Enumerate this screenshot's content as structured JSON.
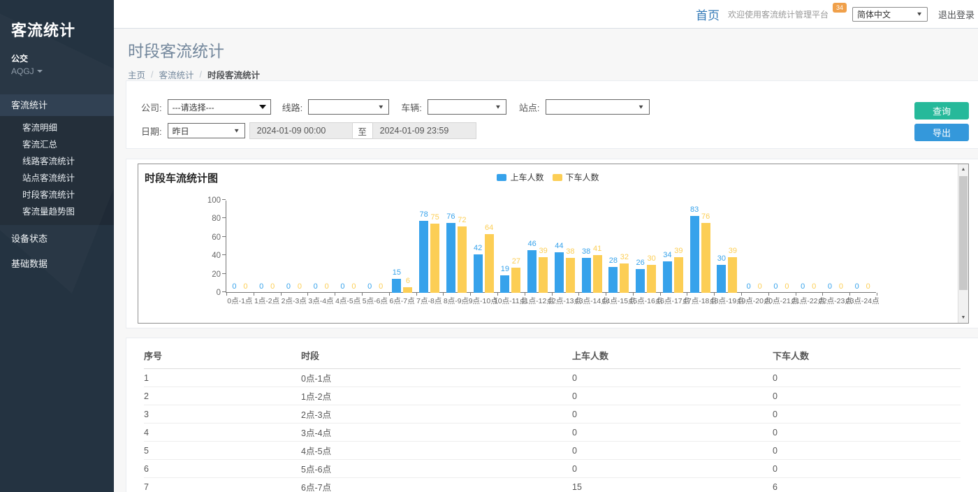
{
  "sidebar": {
    "brand": "客流统计",
    "org": "公交",
    "org_code": "AQGJ",
    "menu": {
      "section_label": "客流统计",
      "items": [
        "客流明细",
        "客流汇总",
        "线路客流统计",
        "站点客流统计",
        "时段客流统计",
        "客流量趋势图"
      ],
      "top_items": [
        "设备状态",
        "基础数据"
      ]
    }
  },
  "topbar": {
    "home": "首页",
    "welcome": "欢迎使用客流统计管理平台",
    "badge": "34",
    "language": "简体中文",
    "logout": "退出登录"
  },
  "page": {
    "title": "时段客流统计",
    "breadcrumb": [
      "主页",
      "客流统计",
      "时段客流统计"
    ]
  },
  "filters": {
    "company_label": "公司:",
    "company_value": "---请选择---",
    "line_label": "线路:",
    "vehicle_label": "车辆:",
    "station_label": "站点:",
    "date_label": "日期:",
    "date_preset": "昨日",
    "date_from": "2024-01-09 00:00",
    "date_sep": "至",
    "date_to": "2024-01-09 23:59",
    "query_button": "查询",
    "export_button": "导出"
  },
  "chart_data": {
    "type": "bar",
    "title": "时段车流统计图",
    "categories": [
      "0点-1点",
      "1点-2点",
      "2点-3点",
      "3点-4点",
      "4点-5点",
      "5点-6点",
      "6点-7点",
      "7点-8点",
      "8点-9点",
      "9点-10点",
      "10点-11点",
      "11点-12点",
      "12点-13点",
      "13点-14点",
      "14点-15点",
      "15点-16点",
      "16点-17点",
      "17点-18点",
      "18点-19点",
      "19点-20点",
      "20点-21点",
      "21点-22点",
      "22点-23点",
      "23点-24点"
    ],
    "series": [
      {
        "name": "上车人数",
        "color": "#36A2EB",
        "values": [
          0,
          0,
          0,
          0,
          0,
          0,
          15,
          78,
          76,
          42,
          19,
          46,
          44,
          38,
          28,
          26,
          34,
          83,
          30,
          0,
          0,
          0,
          0,
          0
        ]
      },
      {
        "name": "下车人数",
        "color": "#FCCE55",
        "values": [
          0,
          0,
          0,
          0,
          0,
          0,
          6,
          75,
          72,
          64,
          27,
          39,
          38,
          41,
          32,
          30,
          39,
          76,
          39,
          0,
          0,
          0,
          0,
          0
        ]
      }
    ],
    "ylim": [
      0,
      100
    ],
    "yticks": [
      0,
      20,
      40,
      60,
      80,
      100
    ],
    "legend_position": "top-center",
    "grid": false,
    "value_labels": true
  },
  "table": {
    "headers": [
      "序号",
      "时段",
      "上车人数",
      "下车人数"
    ],
    "rows": [
      [
        "1",
        "0点-1点",
        "0",
        "0"
      ],
      [
        "2",
        "1点-2点",
        "0",
        "0"
      ],
      [
        "3",
        "2点-3点",
        "0",
        "0"
      ],
      [
        "4",
        "3点-4点",
        "0",
        "0"
      ],
      [
        "5",
        "4点-5点",
        "0",
        "0"
      ],
      [
        "6",
        "5点-6点",
        "0",
        "0"
      ],
      [
        "7",
        "6点-7点",
        "15",
        "6"
      ]
    ]
  }
}
